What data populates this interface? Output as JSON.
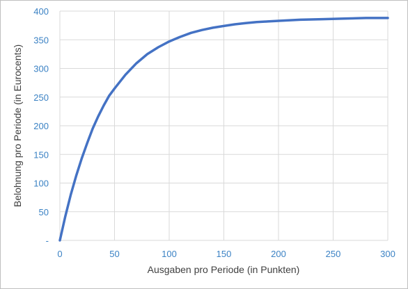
{
  "chart_data": {
    "type": "line",
    "title": "",
    "xlabel": "Ausgaben pro Periode (in Punkten)",
    "ylabel": "Belohnung pro Periode (in Eurocents)",
    "xlim": [
      0,
      300
    ],
    "ylim": [
      0,
      400
    ],
    "x_ticks": [
      "0",
      "50",
      "100",
      "150",
      "200",
      "250",
      "300"
    ],
    "y_ticks": [
      "-",
      "50",
      "100",
      "150",
      "200",
      "250",
      "300",
      "350",
      "400"
    ],
    "grid": true,
    "legend": "none",
    "series_color": "#4472c4",
    "series": [
      {
        "x": [
          0,
          5,
          10,
          15,
          20,
          25,
          30,
          35,
          40,
          45,
          50,
          60,
          70,
          80,
          90,
          100,
          110,
          120,
          130,
          140,
          150,
          160,
          170,
          180,
          190,
          200,
          220,
          240,
          260,
          280,
          300
        ],
        "values": [
          0,
          42,
          80,
          113,
          143,
          170,
          195,
          216,
          235,
          252,
          265,
          289,
          309,
          325,
          337,
          347,
          355,
          362,
          367,
          371,
          374,
          377,
          379,
          381,
          382,
          383,
          385,
          386,
          387,
          388,
          388
        ]
      }
    ]
  }
}
